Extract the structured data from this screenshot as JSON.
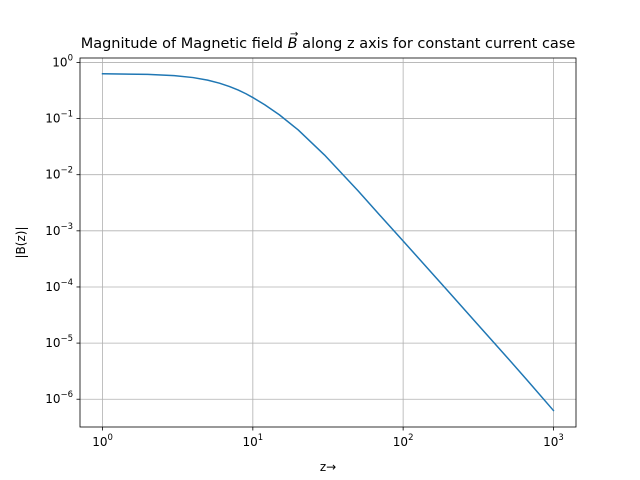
{
  "chart_data": {
    "type": "line",
    "title": {
      "prefix": "Magnitude of Magnetic field ",
      "symbol": "B",
      "suffix": " along z axis for constant current case"
    },
    "xlabel": "z→",
    "ylabel": "|B(z)|",
    "xscale": "log",
    "yscale": "log",
    "xlim": [
      0.708,
      1413
    ],
    "ylim": [
      3.2e-07,
      1.2
    ],
    "grid": true,
    "x_ticks": [
      {
        "value": 1,
        "mantissa": "10",
        "exponent": "0"
      },
      {
        "value": 10,
        "mantissa": "10",
        "exponent": "1"
      },
      {
        "value": 100,
        "mantissa": "10",
        "exponent": "2"
      },
      {
        "value": 1000,
        "mantissa": "10",
        "exponent": "3"
      }
    ],
    "y_ticks": [
      {
        "value": 1,
        "mantissa": "10",
        "exponent": "0"
      },
      {
        "value": 0.1,
        "mantissa": "10",
        "exponent": "−1"
      },
      {
        "value": 0.01,
        "mantissa": "10",
        "exponent": "−2"
      },
      {
        "value": 0.001,
        "mantissa": "10",
        "exponent": "−3"
      },
      {
        "value": 0.0001,
        "mantissa": "10",
        "exponent": "−4"
      },
      {
        "value": 1e-05,
        "mantissa": "10",
        "exponent": "−5"
      },
      {
        "value": 1e-06,
        "mantissa": "10",
        "exponent": "−6"
      }
    ],
    "series": [
      {
        "color": "#1f77b4",
        "x": [
          1,
          2,
          3,
          4,
          5,
          6,
          7,
          8,
          9,
          10,
          12,
          15,
          20,
          30,
          50,
          70,
          100,
          200,
          300,
          500,
          700,
          1000
        ],
        "y": [
          0.628,
          0.613,
          0.582,
          0.538,
          0.484,
          0.427,
          0.372,
          0.322,
          0.277,
          0.237,
          0.176,
          0.117,
          0.063,
          0.0224,
          0.0052,
          0.0019,
          0.00066,
          8.29e-05,
          2.45e-05,
          5.3e-06,
          1.9e-06,
          6.3e-07
        ]
      }
    ]
  }
}
